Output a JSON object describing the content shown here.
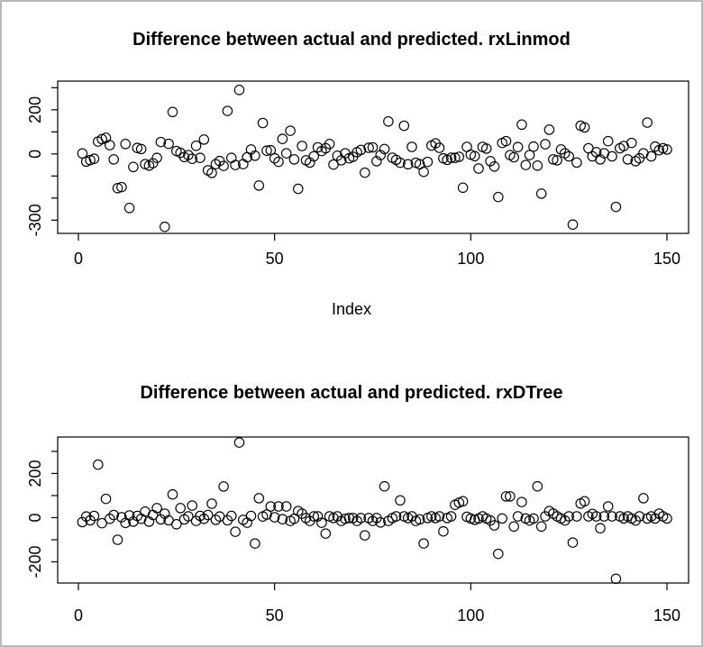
{
  "figure": {
    "background": "#ffffff",
    "frame_border_color": "#b9b9b9",
    "foreground_color": "#000000",
    "point_style": "open-circle"
  },
  "chart_data": [
    {
      "type": "scatter",
      "title": "Difference between actual and predicted. rxLinmod",
      "xlabel": "Index",
      "ylabel": "",
      "x_is_index": true,
      "n_points": 150,
      "xlim": [
        1,
        150
      ],
      "ylim": [
        -360,
        330
      ],
      "xticks": [
        0,
        50,
        100,
        150
      ],
      "yticks": [
        300,
        200,
        100,
        0,
        -100,
        -200,
        -300
      ],
      "ytick_labels": [
        "",
        "200",
        "",
        "0",
        "",
        "",
        "-300"
      ],
      "grid": false,
      "legend": "none",
      "y": [
        2,
        -35,
        -28,
        -22,
        56,
        67,
        73,
        40,
        -25,
        -155,
        -150,
        45,
        -245,
        -59,
        27,
        22,
        -46,
        -53,
        -42,
        -18,
        54,
        -330,
        46,
        190,
        13,
        5,
        -14,
        -5,
        -22,
        37,
        -18,
        65,
        -74,
        -86,
        -46,
        -32,
        -54,
        195,
        -18,
        -50,
        290,
        -46,
        -15,
        20,
        -8,
        -143,
        140,
        15,
        17,
        -20,
        -36,
        68,
        3,
        105,
        -25,
        -158,
        36,
        -29,
        -39,
        -11,
        30,
        13,
        26,
        45,
        -48,
        -8,
        -29,
        3,
        -20,
        -13,
        8,
        18,
        -85,
        28,
        30,
        -33,
        -5,
        22,
        147,
        -17,
        -27,
        -40,
        128,
        -47,
        32,
        -40,
        -47,
        -81,
        -36,
        38,
        48,
        28,
        -20,
        -27,
        -17,
        -18,
        -13,
        -153,
        32,
        -3,
        -10,
        -66,
        32,
        24,
        -33,
        -57,
        -195,
        50,
        58,
        -5,
        -15,
        31,
        133,
        -50,
        -5,
        33,
        -53,
        -180,
        44,
        110,
        -25,
        -29,
        20,
        3,
        -11,
        -320,
        -39,
        128,
        120,
        26,
        -11,
        8,
        -25,
        3,
        58,
        -11,
        -240,
        26,
        36,
        -25,
        50,
        -33,
        -20,
        3,
        142,
        -11,
        33,
        17,
        26,
        20
      ]
    },
    {
      "type": "scatter",
      "title": "Difference between actual and predicted. rxDTree",
      "xlabel": "",
      "ylabel": "",
      "x_is_index": true,
      "n_points": 150,
      "xlim": [
        1,
        150
      ],
      "ylim": [
        -296,
        365
      ],
      "xticks": [
        0,
        50,
        100,
        150
      ],
      "yticks": [
        300,
        200,
        100,
        0,
        -100,
        -200
      ],
      "ytick_labels": [
        "",
        "200",
        "",
        "0",
        "",
        "-200"
      ],
      "grid": false,
      "legend": "none",
      "y": [
        -20,
        5,
        -12,
        8,
        240,
        -25,
        85,
        -5,
        12,
        -100,
        2,
        -24,
        10,
        -18,
        8,
        -5,
        27,
        -18,
        12,
        43,
        -8,
        18,
        -12,
        105,
        -30,
        43,
        -8,
        6,
        55,
        -15,
        8,
        -5,
        12,
        63,
        -10,
        5,
        141,
        -12,
        8,
        -64,
        340,
        -10,
        -23,
        8,
        -117,
        88,
        5,
        14,
        51,
        2,
        51,
        -7,
        51,
        -15,
        -5,
        30,
        18,
        -2,
        -15,
        6,
        6,
        -23,
        -72,
        6,
        -2,
        6,
        -15,
        -5,
        -2,
        -2,
        -15,
        -2,
        -80,
        -2,
        -15,
        -2,
        -22,
        142,
        -15,
        -2,
        6,
        78,
        6,
        -2,
        6,
        -15,
        -8,
        -117,
        -2,
        6,
        -2,
        6,
        -62,
        -2,
        6,
        58,
        68,
        74,
        4,
        -4,
        -10,
        -4,
        6,
        -4,
        -13,
        -35,
        -164,
        -4,
        96,
        96,
        -40,
        6,
        71,
        -4,
        -13,
        -4,
        142,
        -40,
        6,
        30,
        18,
        6,
        -4,
        -13,
        6,
        -113,
        6,
        64,
        74,
        6,
        17,
        6,
        -48,
        6,
        51,
        6,
        -277,
        6,
        -4,
        6,
        -4,
        -13,
        6,
        88,
        -4,
        6,
        -4,
        18,
        6,
        -4
      ]
    }
  ]
}
